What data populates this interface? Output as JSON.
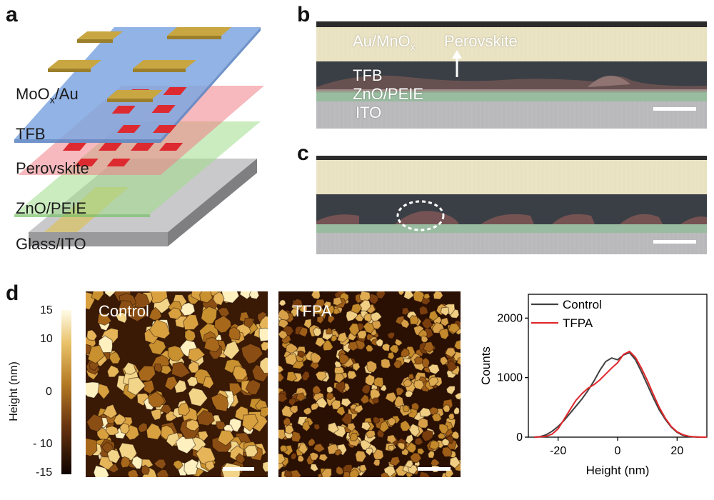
{
  "panels": {
    "a": {
      "label": "a",
      "layers": [
        {
          "name": "MoO",
          "sub": "x",
          "suffix": "/Au"
        },
        {
          "name": "TFB"
        },
        {
          "name": "Perovskite"
        },
        {
          "name": "ZnO/PEIE"
        },
        {
          "name": "Glass/ITO"
        }
      ]
    },
    "b": {
      "label": "b",
      "top_label_main": "Au/MnO",
      "top_label_sub": "x",
      "perovskite_label": "Perovskite",
      "tfb_label": "TFB",
      "zno_label": "ZnO/PEIE",
      "ito_label": "ITO"
    },
    "c": {
      "label": "c"
    },
    "d": {
      "label": "d",
      "colorbar_title": "Height (nm)",
      "colorbar_ticks": [
        "15",
        "10",
        "0",
        "- 10",
        "-15"
      ],
      "afm_left_label": "Control",
      "afm_right_label": "TFPA"
    }
  },
  "chart_data": {
    "type": "line",
    "xlabel": "Height (nm)",
    "ylabel": "Counts",
    "xlim": [
      -30,
      30
    ],
    "ylim": [
      0,
      2400
    ],
    "x_ticks": [
      -20,
      0,
      20
    ],
    "x_tick_labels": [
      "-20",
      "0",
      "20"
    ],
    "y_ticks": [
      0,
      1000,
      2000
    ],
    "y_tick_labels": [
      "0",
      "1000",
      "2000"
    ],
    "legend_position": "top-left",
    "series": [
      {
        "name": "Control",
        "color": "#404040",
        "x": [
          -28,
          -26,
          -24,
          -22,
          -20,
          -18,
          -16,
          -14,
          -12,
          -10,
          -8,
          -6,
          -4,
          -2,
          0,
          2,
          4,
          6,
          8,
          10,
          12,
          14,
          16,
          18,
          20,
          22,
          24,
          26,
          28,
          30
        ],
        "y": [
          0,
          10,
          40,
          100,
          180,
          280,
          400,
          520,
          640,
          780,
          940,
          1120,
          1270,
          1330,
          1300,
          1380,
          1420,
          1300,
          1100,
          880,
          660,
          460,
          300,
          170,
          80,
          30,
          10,
          5,
          0,
          0
        ]
      },
      {
        "name": "TFPA",
        "color": "#e0272b",
        "x": [
          -28,
          -26,
          -24,
          -22,
          -20,
          -18,
          -16,
          -14,
          -12,
          -10,
          -8,
          -6,
          -4,
          -2,
          0,
          2,
          4,
          6,
          8,
          10,
          12,
          14,
          16,
          18,
          20,
          22,
          24,
          26,
          28,
          30
        ],
        "y": [
          0,
          5,
          15,
          50,
          140,
          300,
          460,
          620,
          730,
          820,
          880,
          960,
          1060,
          1160,
          1250,
          1390,
          1440,
          1340,
          1160,
          950,
          720,
          500,
          320,
          180,
          90,
          40,
          15,
          5,
          0,
          0
        ]
      }
    ]
  }
}
